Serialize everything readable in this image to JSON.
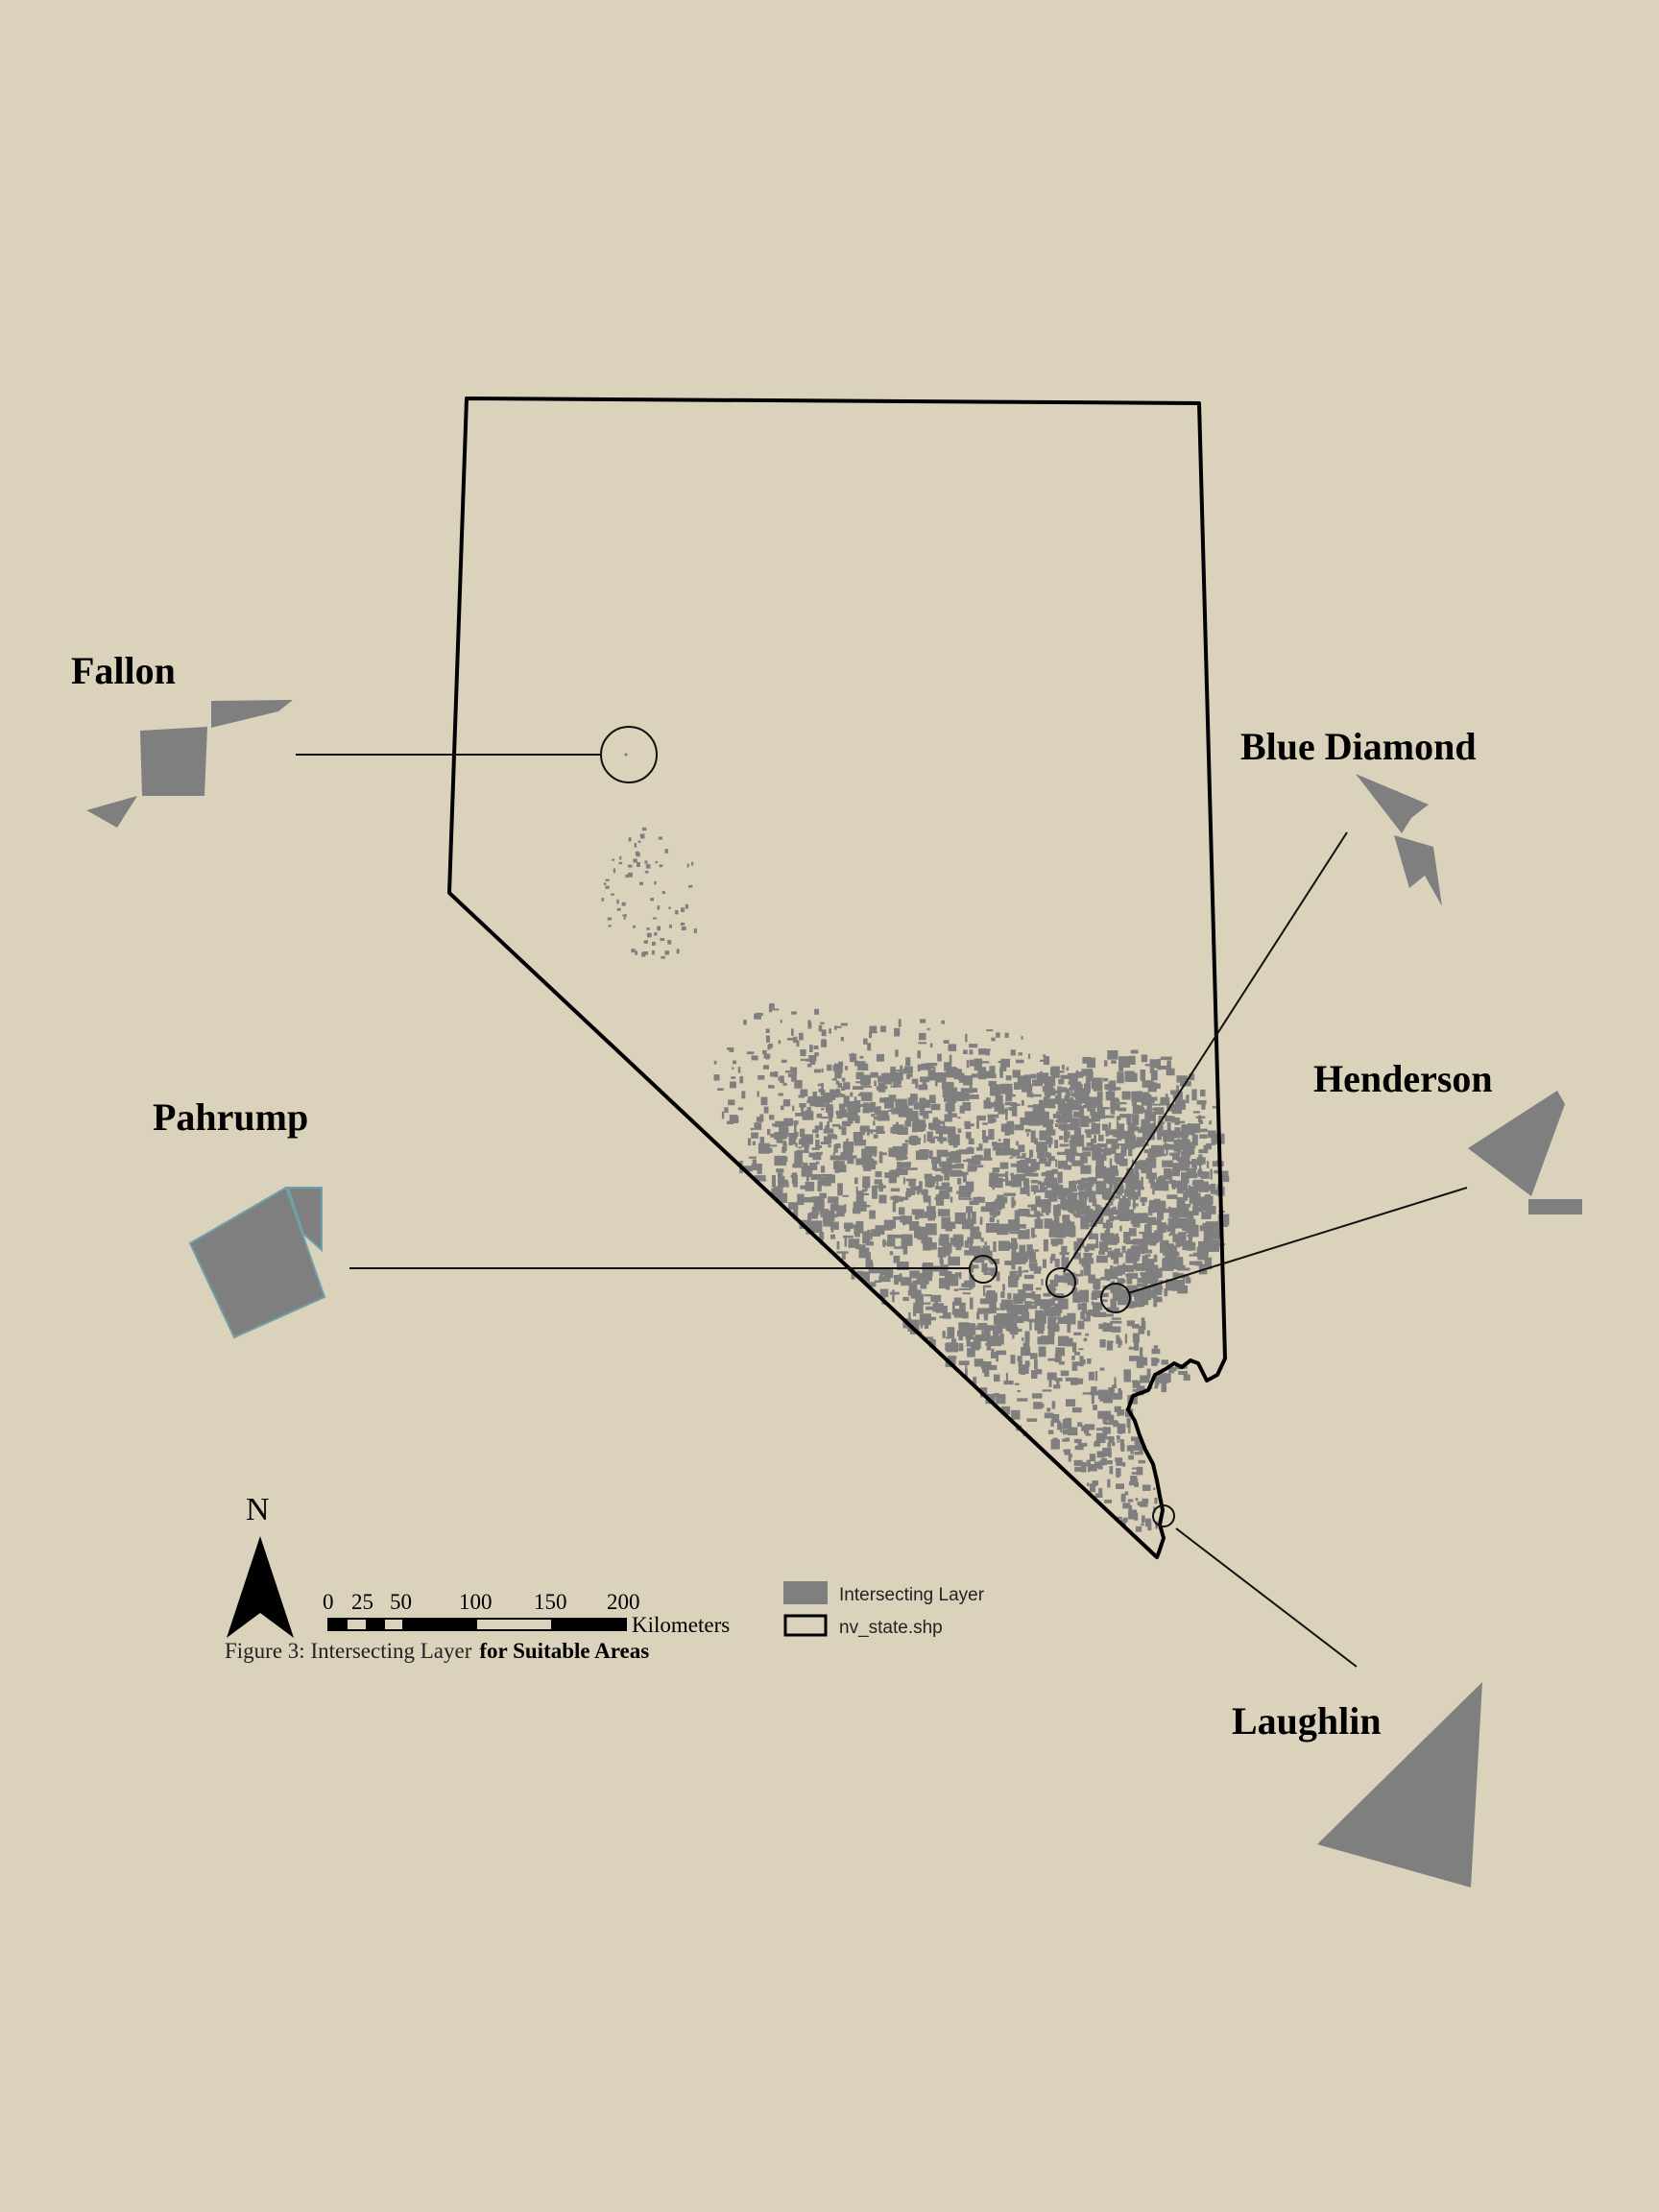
{
  "colors": {
    "background": "#dbd2bb",
    "suitable_area_fill": "#7f7f7f",
    "state_outline": "#000000",
    "inset_edge": "#6fa0a8"
  },
  "map": {
    "state_layer_name": "nv_state.shp",
    "suitable_layer_name": "Intersecting Layer",
    "locations": [
      {
        "name": "Fallon"
      },
      {
        "name": "Blue Diamond"
      },
      {
        "name": "Henderson"
      },
      {
        "name": "Pahrump"
      },
      {
        "name": "Laughlin"
      }
    ]
  },
  "north_arrow": {
    "label": "N",
    "icon": "north-arrow-icon"
  },
  "scale_bar": {
    "ticks": [
      "0",
      "25",
      "50",
      "100",
      "150",
      "200"
    ],
    "units": "Kilometers"
  },
  "legend": {
    "items": [
      {
        "label": "Intersecting Layer",
        "symbol": "gray-fill"
      },
      {
        "label": "nv_state.shp",
        "symbol": "black-outline"
      }
    ]
  },
  "caption": {
    "prefix": "Figure 3: Intersecting Layer",
    "bold": "for Suitable Areas"
  }
}
